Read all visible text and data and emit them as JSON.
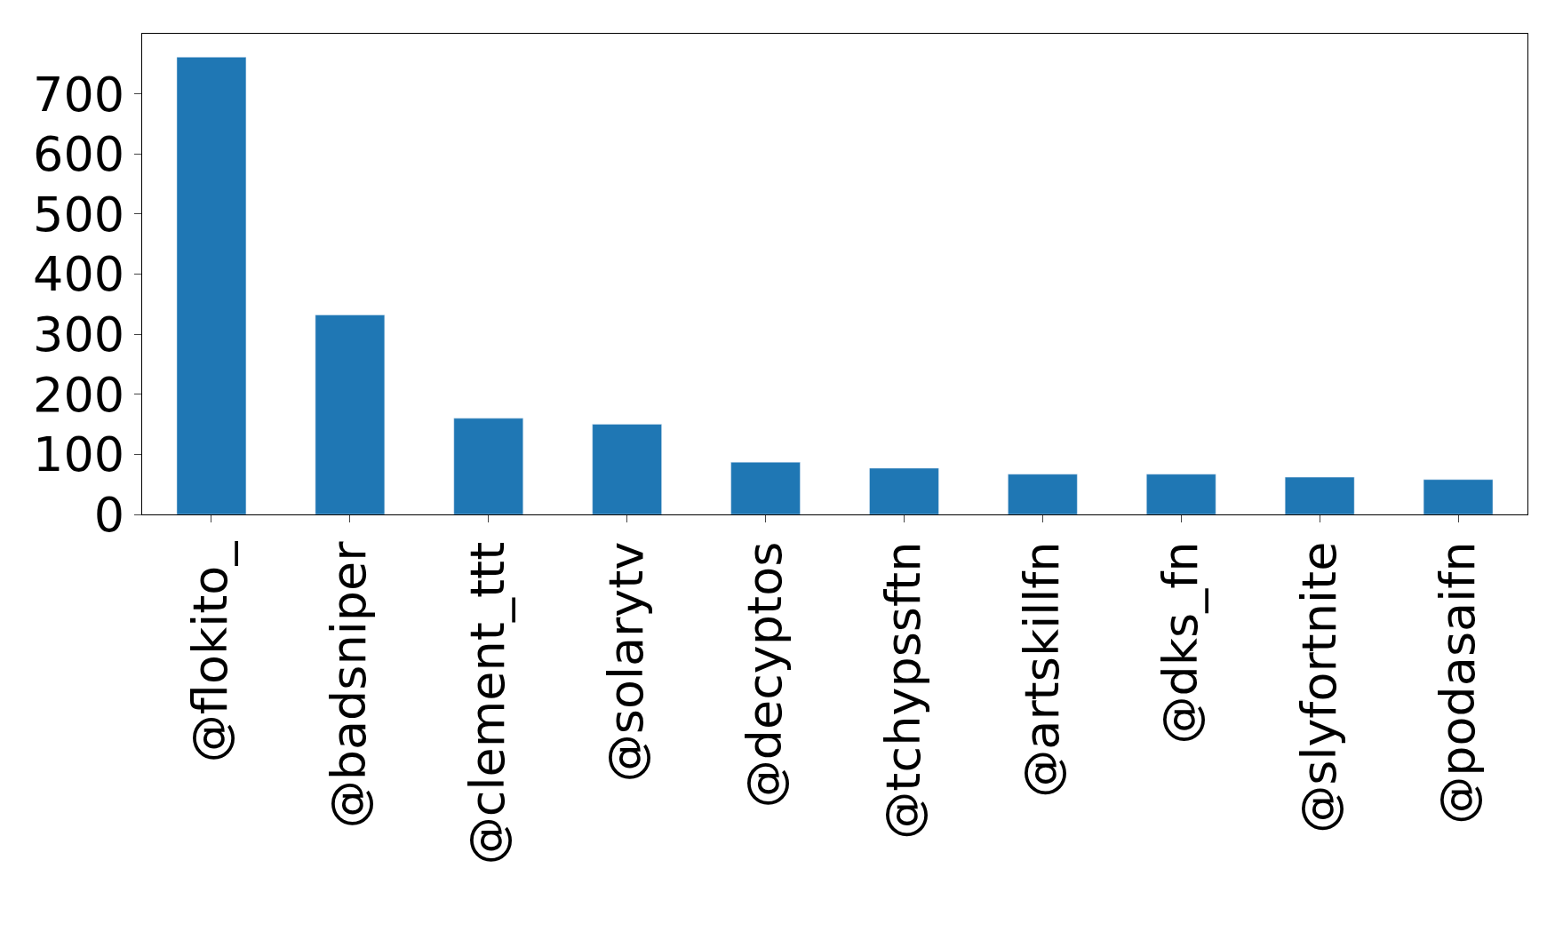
{
  "chart_data": {
    "type": "bar",
    "categories": [
      "@flokito_",
      "@badsniper",
      "@clement_ttt",
      "@solarytv",
      "@decyptos",
      "@tchypssftn",
      "@artskillfn",
      "@dks_fn",
      "@slyfortnite",
      "@podasaifn"
    ],
    "values": [
      761,
      332,
      160,
      150,
      87,
      77,
      67,
      67,
      62,
      58
    ],
    "color": "#1f77b4",
    "ylim": [
      0,
      800
    ],
    "yticks": [
      0,
      100,
      200,
      300,
      400,
      500,
      600,
      700
    ]
  }
}
